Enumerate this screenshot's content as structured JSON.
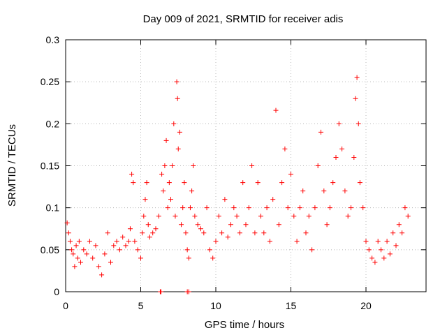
{
  "chart_data": {
    "type": "scatter",
    "title": "Day 009 of 2021, SRMTID for receiver adis",
    "xlabel": "GPS time / hours",
    "ylabel": "SRMTID / TECUs",
    "xlim": [
      0,
      24
    ],
    "ylim": [
      0,
      0.3
    ],
    "x_ticks": [
      0,
      5,
      10,
      15,
      20
    ],
    "x_tick_labels": [
      "0",
      "5",
      "10",
      "15",
      "20"
    ],
    "y_ticks": [
      0,
      0.05,
      0.1,
      0.15,
      0.2,
      0.25,
      0.3
    ],
    "y_tick_labels": [
      "0",
      "0.05",
      "0.1",
      "0.15",
      "0.2",
      "0.25",
      "0.3"
    ],
    "grid": true,
    "marker": "plus",
    "color": "#ff0000",
    "series": [
      {
        "name": "SRMTID",
        "points": [
          [
            0.1,
            0.082
          ],
          [
            0.2,
            0.07
          ],
          [
            0.3,
            0.06
          ],
          [
            0.4,
            0.05
          ],
          [
            0.5,
            0.045
          ],
          [
            0.6,
            0.03
          ],
          [
            0.7,
            0.055
          ],
          [
            0.8,
            0.04
          ],
          [
            0.9,
            0.06
          ],
          [
            1.0,
            0.035
          ],
          [
            1.2,
            0.05
          ],
          [
            1.4,
            0.045
          ],
          [
            1.6,
            0.06
          ],
          [
            1.8,
            0.04
          ],
          [
            2.0,
            0.055
          ],
          [
            2.2,
            0.03
          ],
          [
            2.4,
            0.02
          ],
          [
            2.6,
            0.045
          ],
          [
            2.8,
            0.07
          ],
          [
            3.0,
            0.035
          ],
          [
            3.2,
            0.055
          ],
          [
            3.4,
            0.06
          ],
          [
            3.6,
            0.05
          ],
          [
            3.8,
            0.065
          ],
          [
            4.0,
            0.055
          ],
          [
            4.2,
            0.06
          ],
          [
            4.3,
            0.075
          ],
          [
            4.4,
            0.14
          ],
          [
            4.5,
            0.13
          ],
          [
            4.6,
            0.06
          ],
          [
            4.8,
            0.05
          ],
          [
            5.0,
            0.04
          ],
          [
            5.1,
            0.07
          ],
          [
            5.2,
            0.09
          ],
          [
            5.3,
            0.11
          ],
          [
            5.4,
            0.13
          ],
          [
            5.5,
            0.08
          ],
          [
            5.6,
            0.065
          ],
          [
            5.8,
            0.07
          ],
          [
            6.0,
            0.075
          ],
          [
            6.2,
            0.09
          ],
          [
            6.4,
            0.14
          ],
          [
            6.5,
            0.12
          ],
          [
            6.6,
            0.15
          ],
          [
            6.7,
            0.18
          ],
          [
            6.8,
            0.1
          ],
          [
            6.9,
            0.13
          ],
          [
            7.0,
            0.11
          ],
          [
            7.1,
            0.15
          ],
          [
            7.2,
            0.2
          ],
          [
            7.3,
            0.09
          ],
          [
            7.4,
            0.25
          ],
          [
            7.45,
            0.23
          ],
          [
            7.5,
            0.17
          ],
          [
            7.6,
            0.19
          ],
          [
            7.7,
            0.08
          ],
          [
            7.8,
            0.1
          ],
          [
            7.9,
            0.13
          ],
          [
            8.0,
            0.07
          ],
          [
            8.1,
            0.05
          ],
          [
            8.2,
            0.04
          ],
          [
            8.3,
            0.1
          ],
          [
            8.4,
            0.12
          ],
          [
            8.5,
            0.15
          ],
          [
            8.6,
            0.09
          ],
          [
            8.8,
            0.08
          ],
          [
            9.0,
            0.075
          ],
          [
            9.2,
            0.07
          ],
          [
            9.4,
            0.1
          ],
          [
            9.6,
            0.05
          ],
          [
            9.8,
            0.04
          ],
          [
            10.0,
            0.06
          ],
          [
            10.2,
            0.09
          ],
          [
            10.4,
            0.07
          ],
          [
            10.6,
            0.11
          ],
          [
            10.8,
            0.065
          ],
          [
            11.0,
            0.08
          ],
          [
            11.2,
            0.1
          ],
          [
            11.4,
            0.09
          ],
          [
            11.6,
            0.07
          ],
          [
            11.8,
            0.13
          ],
          [
            12.0,
            0.08
          ],
          [
            12.2,
            0.1
          ],
          [
            12.4,
            0.15
          ],
          [
            12.6,
            0.07
          ],
          [
            12.8,
            0.13
          ],
          [
            13.0,
            0.09
          ],
          [
            13.2,
            0.07
          ],
          [
            13.4,
            0.1
          ],
          [
            13.6,
            0.06
          ],
          [
            13.8,
            0.11
          ],
          [
            14.0,
            0.216
          ],
          [
            14.2,
            0.08
          ],
          [
            14.4,
            0.13
          ],
          [
            14.6,
            0.17
          ],
          [
            14.8,
            0.1
          ],
          [
            15.0,
            0.14
          ],
          [
            15.2,
            0.09
          ],
          [
            15.4,
            0.06
          ],
          [
            15.6,
            0.1
          ],
          [
            15.8,
            0.12
          ],
          [
            16.0,
            0.07
          ],
          [
            16.2,
            0.09
          ],
          [
            16.4,
            0.05
          ],
          [
            16.6,
            0.1
          ],
          [
            16.8,
            0.15
          ],
          [
            17.0,
            0.19
          ],
          [
            17.2,
            0.12
          ],
          [
            17.4,
            0.08
          ],
          [
            17.6,
            0.1
          ],
          [
            17.8,
            0.13
          ],
          [
            18.0,
            0.16
          ],
          [
            18.2,
            0.2
          ],
          [
            18.4,
            0.17
          ],
          [
            18.6,
            0.12
          ],
          [
            18.8,
            0.09
          ],
          [
            19.0,
            0.1
          ],
          [
            19.2,
            0.16
          ],
          [
            19.3,
            0.23
          ],
          [
            19.4,
            0.255
          ],
          [
            19.5,
            0.2
          ],
          [
            19.6,
            0.13
          ],
          [
            19.8,
            0.1
          ],
          [
            20.0,
            0.06
          ],
          [
            20.2,
            0.05
          ],
          [
            20.4,
            0.04
          ],
          [
            20.6,
            0.035
          ],
          [
            20.8,
            0.06
          ],
          [
            21.0,
            0.05
          ],
          [
            21.2,
            0.04
          ],
          [
            21.4,
            0.06
          ],
          [
            21.6,
            0.045
          ],
          [
            21.8,
            0.07
          ],
          [
            22.0,
            0.055
          ],
          [
            22.2,
            0.08
          ],
          [
            22.4,
            0.07
          ],
          [
            22.6,
            0.1
          ],
          [
            22.8,
            0.09
          ]
        ]
      }
    ],
    "zero_markers_x": [
      6.3,
      6.35,
      8.1,
      8.2
    ]
  }
}
